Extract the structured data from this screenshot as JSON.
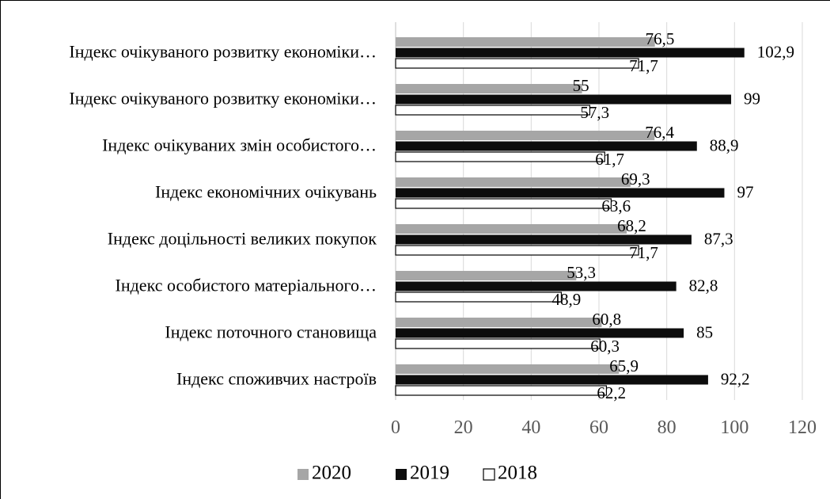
{
  "chart_data": {
    "type": "bar",
    "orientation": "horizontal",
    "categories": [
      "Індекс очікуваного розвитку економіки…",
      "Індекс очікуваного розвитку економіки…",
      "Індекс очікуваних змін особистого…",
      "Індекс економічних очікувань",
      "Індекс доцільності великих покупок",
      "Індекс  особистого матеріального…",
      "Індекс поточного становища",
      "Індекс споживчих настроїв"
    ],
    "series": [
      {
        "name": "2020",
        "color": "#a6a6a6",
        "values": [
          76.5,
          55,
          76.4,
          69.3,
          68.2,
          53.3,
          60.8,
          65.9
        ],
        "labels": [
          "76,5",
          "55",
          "76,4",
          "69,3",
          "68,2",
          "53,3",
          "60,8",
          "65,9"
        ]
      },
      {
        "name": "2019",
        "color": "#0d0d0d",
        "values": [
          102.9,
          99,
          88.9,
          97,
          87.3,
          82.8,
          85,
          92.2
        ],
        "labels": [
          "102,9",
          "99",
          "88,9",
          "97",
          "87,3",
          "82,8",
          "85",
          "92,2"
        ]
      },
      {
        "name": "2018",
        "color": "#ffffff",
        "values": [
          71.7,
          57.3,
          61.7,
          63.6,
          71.7,
          48.9,
          60.3,
          62.2
        ],
        "labels": [
          "71,7",
          "57,3",
          "61,7",
          "63,6",
          "71,7",
          "48,9",
          "60,3",
          "62,2"
        ]
      }
    ],
    "xlim": [
      0,
      120
    ],
    "x_ticks": [
      0,
      20,
      40,
      60,
      80,
      100,
      120
    ],
    "x_tick_labels": [
      "0",
      "20",
      "40",
      "60",
      "80",
      "100",
      "120"
    ],
    "grid": true,
    "legend_position": "bottom",
    "title": "",
    "xlabel": "",
    "ylabel": ""
  }
}
